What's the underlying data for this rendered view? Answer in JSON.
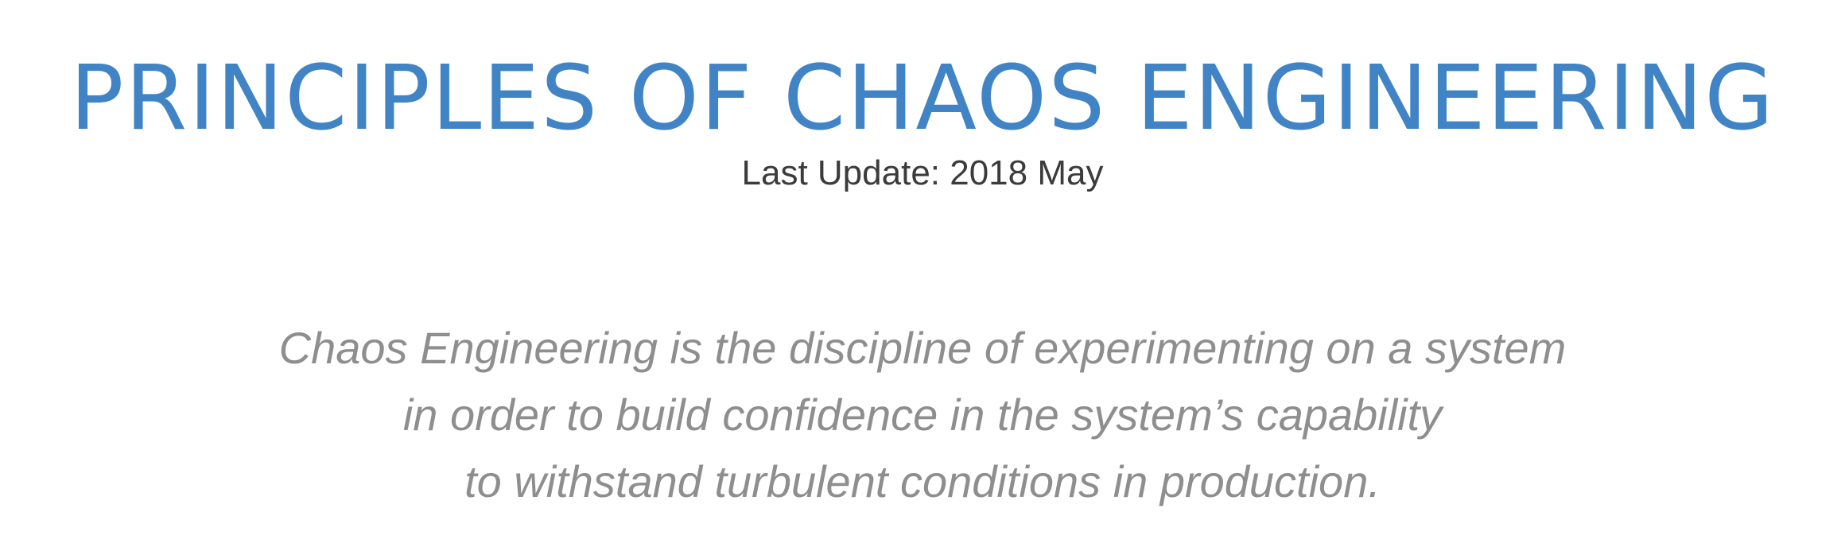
{
  "header": {
    "title": "PRINCIPLES OF CHAOS ENGINEERING",
    "last_update": "Last Update: 2018 May"
  },
  "definition": {
    "lines": [
      "Chaos Engineering is the discipline of experimenting on a system",
      "in order to build confidence in the system’s capability",
      "to withstand turbulent conditions in production."
    ]
  },
  "colors": {
    "title": "#4184c6",
    "subtitle": "#3b3b3b",
    "definition": "#8e8e8e",
    "background": "#ffffff"
  }
}
